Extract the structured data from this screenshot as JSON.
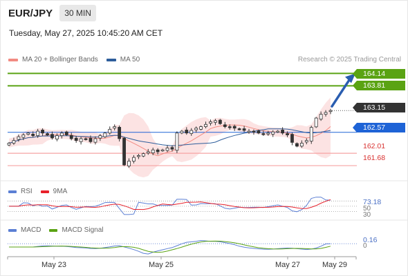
{
  "header": {
    "symbol": "EUR/JPY",
    "interval": "30 MIN",
    "timestamp": "Tuesday, May 27, 2025 10:45:20 AM CET"
  },
  "main_legend": {
    "items": [
      {
        "label": "MA 20 + Bollinger Bands",
        "color": "#f28b82"
      },
      {
        "label": "MA 50",
        "color": "#2d5d9b"
      }
    ],
    "research": "Research © 2025 Trading Central"
  },
  "price_levels": {
    "resistance_2": {
      "value": "164.14",
      "color": "#5aa313"
    },
    "resistance_1": {
      "value": "163.81",
      "color": "#5aa313"
    },
    "last_price": {
      "value": "163.15",
      "color": "#333333"
    },
    "pivot": {
      "value": "162.57",
      "color": "#1e63d6"
    },
    "support_1": {
      "value": "162.01",
      "color": "#e05050"
    },
    "support_2": {
      "value": "161.68",
      "color": "#e05050"
    }
  },
  "rsi_panel": {
    "legend": [
      {
        "label": "RSI",
        "color": "#5b7fd4"
      },
      {
        "label": "9MA",
        "color": "#e8202a"
      }
    ],
    "value": "73.18",
    "level_50": "50",
    "level_30": "30"
  },
  "macd_panel": {
    "legend": [
      {
        "label": "MACD",
        "color": "#5b7fd4"
      },
      {
        "label": "MACD Signal",
        "color": "#5aa313"
      }
    ],
    "value": "0.16",
    "zero": "0"
  },
  "x_axis": {
    "labels": [
      "May 23",
      "May 25",
      "May 27",
      "May 29"
    ]
  },
  "chart_data": {
    "type": "candlestick",
    "title": "EUR/JPY",
    "interval": "30 MIN",
    "x_tick_labels": [
      "May 23",
      "May 25",
      "May 27",
      "May 29"
    ],
    "levels": [
      164.14,
      163.81,
      163.15,
      162.57,
      162.01,
      161.68
    ],
    "y_range": [
      161.35,
      164.35
    ],
    "close_path": [
      162.28,
      162.35,
      162.45,
      162.5,
      162.55,
      162.48,
      162.6,
      162.55,
      162.5,
      162.42,
      162.48,
      162.55,
      162.5,
      162.4,
      162.35,
      162.4,
      162.38,
      162.32,
      162.4,
      162.48,
      162.55,
      162.65,
      162.72,
      162.4,
      161.7,
      161.8,
      161.9,
      161.95,
      162.0,
      162.05,
      162.1,
      162.05,
      162.1,
      162.15,
      162.12,
      162.55,
      162.6,
      162.55,
      162.62,
      162.68,
      162.72,
      162.78,
      162.85,
      162.88,
      162.8,
      162.72,
      162.7,
      162.68,
      162.65,
      162.62,
      162.6,
      162.58,
      162.55,
      162.52,
      162.55,
      162.58,
      162.6,
      162.55,
      162.5,
      162.3,
      162.2,
      162.28,
      162.35,
      162.7,
      162.95,
      163.05,
      163.1,
      163.15
    ],
    "rsi": {
      "last": 73.18,
      "levels": [
        50,
        30
      ]
    },
    "macd": {
      "last": 0.16,
      "zero": 0
    }
  }
}
